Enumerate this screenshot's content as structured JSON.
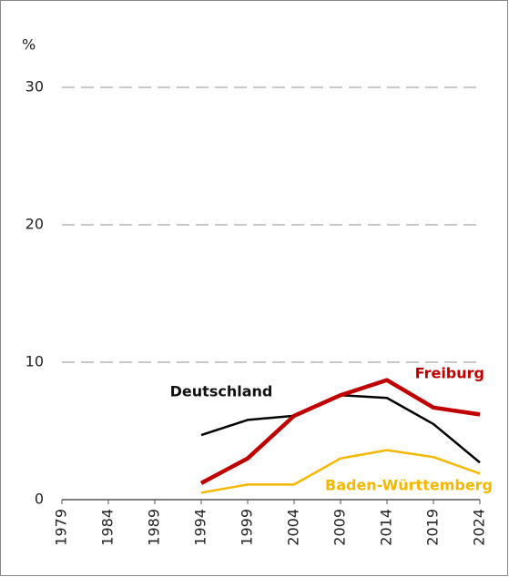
{
  "chart_data": {
    "type": "line",
    "y_label": "%",
    "categories": [
      "1979",
      "1984",
      "1989",
      "1994",
      "1999",
      "2004",
      "2009",
      "2014",
      "2019",
      "2024"
    ],
    "series": [
      {
        "name": "Deutschland",
        "color": "#000000",
        "values": [
          null,
          null,
          null,
          4.7,
          5.8,
          6.1,
          7.6,
          7.4,
          5.5,
          2.7
        ]
      },
      {
        "name": "Freiburg",
        "color": "#c00000",
        "values": [
          null,
          null,
          null,
          1.2,
          3.0,
          6.1,
          7.6,
          8.7,
          6.7,
          6.2
        ]
      },
      {
        "name": "Baden-Württemberg",
        "color": "#f5b800",
        "values": [
          null,
          null,
          null,
          0.5,
          1.1,
          1.1,
          3.0,
          3.6,
          3.1,
          1.9
        ]
      }
    ],
    "ylim": [
      0,
      30
    ],
    "yticks": [
      0,
      10,
      20,
      30
    ],
    "grid": true
  }
}
